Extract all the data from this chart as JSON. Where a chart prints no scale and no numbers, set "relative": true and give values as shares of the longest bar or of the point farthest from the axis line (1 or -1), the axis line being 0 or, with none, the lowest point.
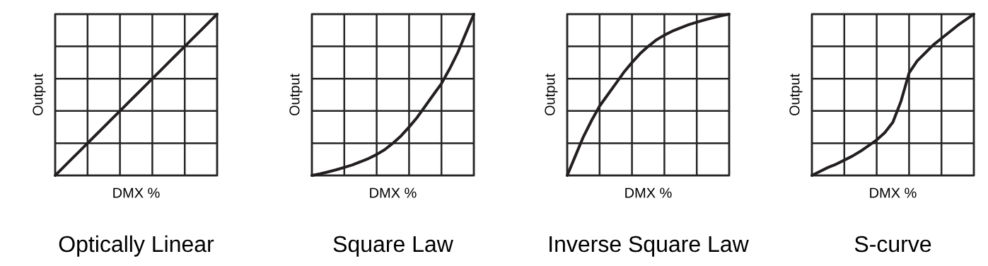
{
  "chart_data": [
    {
      "type": "line",
      "title": "Optically Linear",
      "xlabel": "DMX %",
      "ylabel": "Output",
      "relative": true,
      "grid": true,
      "color": "#231f20",
      "categories": [
        null,
        null,
        null,
        null,
        null,
        null,
        null,
        null,
        null,
        null,
        null,
        null,
        null,
        null,
        null,
        null,
        null,
        null,
        null,
        null,
        null
      ],
      "values": [
        0,
        0.05,
        0.1,
        0.15,
        0.2,
        0.25,
        0.3,
        0.35,
        0.4,
        0.45,
        0.5,
        0.55,
        0.6,
        0.65,
        0.7,
        0.75,
        0.8,
        0.85,
        0.9,
        0.95,
        1
      ]
    },
    {
      "type": "line",
      "title": "Square Law",
      "xlabel": "DMX %",
      "ylabel": "Output",
      "relative": true,
      "grid": true,
      "color": "#231f20",
      "categories": [
        null,
        null,
        null,
        null,
        null,
        null,
        null,
        null,
        null,
        null,
        null,
        null,
        null,
        null,
        null,
        null,
        null,
        null,
        null,
        null,
        null
      ],
      "values": [
        0,
        0.01,
        0.022,
        0.035,
        0.05,
        0.065,
        0.085,
        0.105,
        0.13,
        0.16,
        0.2,
        0.245,
        0.3,
        0.36,
        0.43,
        0.5,
        0.57,
        0.66,
        0.76,
        0.88,
        1
      ]
    },
    {
      "type": "line",
      "title": "Inverse Square Law",
      "xlabel": "DMX %",
      "ylabel": "Output",
      "relative": true,
      "grid": true,
      "color": "#231f20",
      "categories": [
        null,
        null,
        null,
        null,
        null,
        null,
        null,
        null,
        null,
        null,
        null,
        null,
        null,
        null,
        null,
        null,
        null,
        null,
        null,
        null,
        null
      ],
      "values": [
        0,
        0.12,
        0.24,
        0.34,
        0.43,
        0.5,
        0.57,
        0.64,
        0.7,
        0.755,
        0.8,
        0.84,
        0.87,
        0.895,
        0.915,
        0.935,
        0.95,
        0.965,
        0.978,
        0.99,
        1
      ]
    },
    {
      "type": "line",
      "title": "S-curve",
      "xlabel": "DMX %",
      "ylabel": "Output",
      "relative": true,
      "grid": true,
      "color": "#231f20",
      "categories": [
        null,
        null,
        null,
        null,
        null,
        null,
        null,
        null,
        null,
        null,
        null,
        null,
        null,
        null,
        null,
        null,
        null,
        null,
        null,
        null,
        null
      ],
      "values": [
        0,
        0.025,
        0.05,
        0.07,
        0.095,
        0.12,
        0.15,
        0.185,
        0.22,
        0.265,
        0.33,
        0.46,
        0.635,
        0.71,
        0.76,
        0.81,
        0.85,
        0.89,
        0.93,
        0.965,
        1
      ]
    }
  ]
}
